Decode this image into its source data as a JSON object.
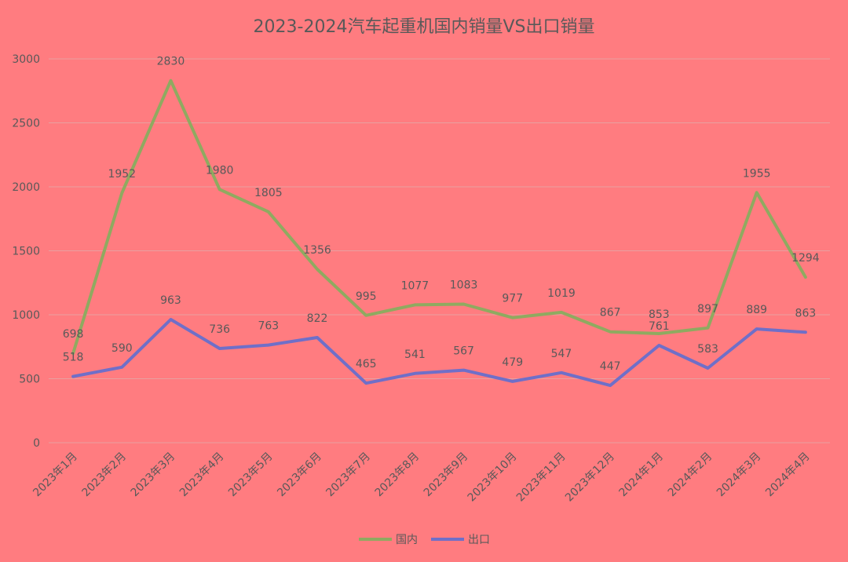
{
  "chart_data": {
    "type": "line",
    "title": "2023-2024汽车起重机国内销量VS出口销量",
    "categories": [
      "2023年1月",
      "2023年2月",
      "2023年3月",
      "2023年4月",
      "2023年5月",
      "2023年6月",
      "2023年7月",
      "2023年8月",
      "2023年9月",
      "2023年10月",
      "2023年11月",
      "2023年12月",
      "2024年1月",
      "2024年2月",
      "2024年3月",
      "2024年4月"
    ],
    "series": [
      {
        "name": "国内",
        "color": "#8FAA60",
        "values": [
          698,
          1952,
          2830,
          1980,
          1805,
          1356,
          995,
          1077,
          1083,
          977,
          1019,
          867,
          853,
          897,
          1955,
          1294
        ]
      },
      {
        "name": "出口",
        "color": "#6F6FC8",
        "values": [
          518,
          590,
          963,
          736,
          763,
          822,
          465,
          541,
          567,
          479,
          547,
          447,
          761,
          583,
          889,
          863
        ]
      }
    ],
    "ylim": [
      0,
      3000
    ],
    "yticks": [
      0,
      500,
      1000,
      1500,
      2000,
      2500,
      3000
    ],
    "grid": true,
    "legend_position": "bottom",
    "background": "#FF7C80",
    "gridline_color": "#E8A0A0"
  }
}
